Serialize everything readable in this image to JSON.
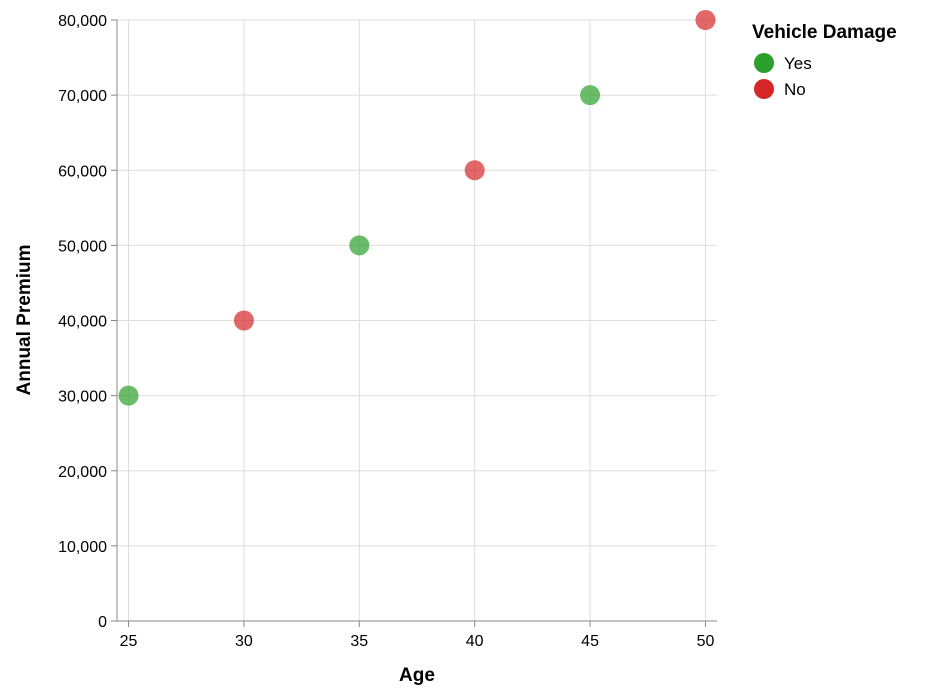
{
  "chart_data": {
    "type": "scatter",
    "xlabel": "Age",
    "ylabel": "Annual Premium",
    "xlim": [
      24.5,
      50.5
    ],
    "ylim": [
      0,
      80000
    ],
    "x_ticks": [
      25,
      30,
      35,
      40,
      45,
      50
    ],
    "y_ticks": [
      0,
      10000,
      20000,
      30000,
      40000,
      50000,
      60000,
      70000,
      80000
    ],
    "x_tick_labels": [
      "25",
      "30",
      "35",
      "40",
      "45",
      "50"
    ],
    "y_tick_labels": [
      "0",
      "10,000",
      "20,000",
      "30,000",
      "40,000",
      "50,000",
      "60,000",
      "70,000",
      "80,000"
    ],
    "grid": true,
    "legend": {
      "title": "Vehicle Damage",
      "placement": "top-right",
      "entries": [
        {
          "label": "Yes",
          "color": "#2ca02c"
        },
        {
          "label": "No",
          "color": "#d62728"
        }
      ]
    },
    "points": [
      {
        "x": 25,
        "y": 30000,
        "category": "Yes"
      },
      {
        "x": 30,
        "y": 40000,
        "category": "No"
      },
      {
        "x": 35,
        "y": 50000,
        "category": "Yes"
      },
      {
        "x": 40,
        "y": 60000,
        "category": "No"
      },
      {
        "x": 45,
        "y": 70000,
        "category": "Yes"
      },
      {
        "x": 50,
        "y": 80000,
        "category": "No"
      }
    ]
  }
}
